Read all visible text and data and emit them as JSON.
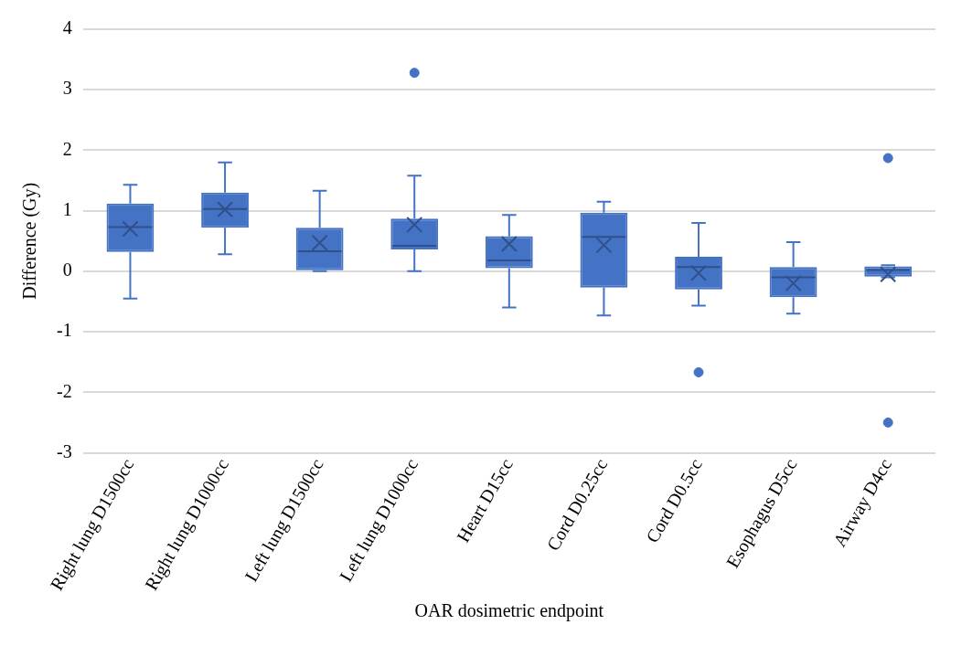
{
  "chart_data": {
    "type": "box",
    "xlabel": "OAR dosimetric endpoint",
    "ylabel": "Difference (Gy)",
    "categories": [
      "Right lung D1500cc",
      "Right lung D1000cc",
      "Left lung D1500cc",
      "Left lung D1000cc",
      "Heart D15cc",
      "Cord D0.25cc",
      "Cord D0.5cc",
      "Esophagus D5cc",
      "Airway D4cc"
    ],
    "ylim": [
      -3,
      4
    ],
    "yticks": [
      -3,
      -2,
      -1,
      0,
      1,
      2,
      3,
      4
    ],
    "grid": "y",
    "series": [
      {
        "color": "#4472c4",
        "boxes": [
          {
            "low": -0.45,
            "q1": 0.32,
            "median": 0.73,
            "q3": 1.12,
            "high": 1.43,
            "mean": 0.7
          },
          {
            "low": 0.28,
            "q1": 0.72,
            "median": 1.03,
            "q3": 1.3,
            "high": 1.8,
            "mean": 1.02
          },
          {
            "low": 0,
            "q1": 0,
            "median": 0.33,
            "q3": 0.72,
            "high": 1.33,
            "mean": 0.47
          },
          {
            "low": 0,
            "q1": 0.36,
            "median": 0.42,
            "q3": 0.87,
            "high": 1.58,
            "mean": 0.77,
            "outliers": [
              3.28
            ]
          },
          {
            "low": -0.6,
            "q1": 0.05,
            "median": 0.18,
            "q3": 0.58,
            "high": 0.93,
            "mean": 0.45
          },
          {
            "low": -0.73,
            "q1": -0.27,
            "median": 0.57,
            "q3": 0.97,
            "high": 1.15,
            "mean": 0.43
          },
          {
            "low": -0.57,
            "q1": -0.3,
            "median": 0.07,
            "q3": 0.24,
            "high": 0.8,
            "mean": -0.03,
            "outliers": [
              -1.67
            ]
          },
          {
            "low": -0.7,
            "q1": -0.43,
            "median": -0.1,
            "q3": 0.07,
            "high": 0.48,
            "mean": -0.2
          },
          {
            "low": -0.1,
            "q1": -0.09,
            "median": 0.02,
            "q3": 0.08,
            "high": 0.1,
            "mean": -0.05,
            "outliers": [
              1.87,
              -2.5
            ]
          }
        ]
      }
    ]
  }
}
